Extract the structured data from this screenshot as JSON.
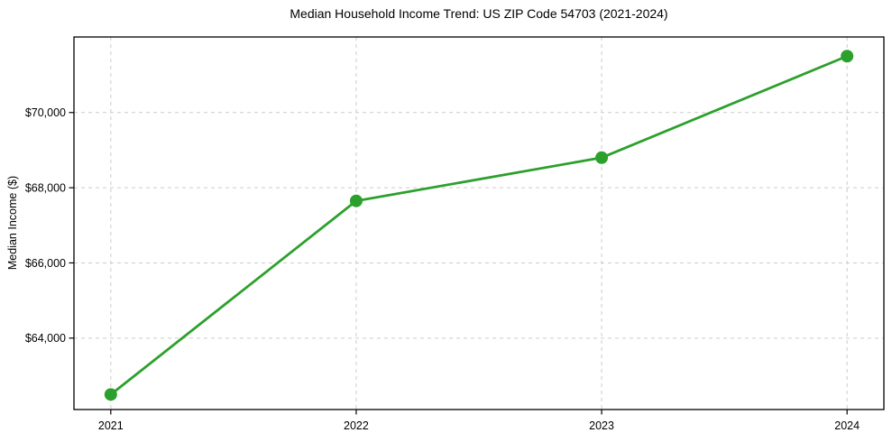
{
  "page": {
    "background": "#ffffff"
  },
  "chart_data": {
    "type": "line",
    "title": "Median Household Income Trend: US ZIP Code 54703 (2021-2024)",
    "xlabel": "",
    "ylabel": "Median Income ($)",
    "x": [
      2021,
      2022,
      2023,
      2024
    ],
    "values": [
      62500,
      67650,
      68800,
      71500
    ],
    "xtick_labels": [
      "2021",
      "2022",
      "2023",
      "2024"
    ],
    "ytick_values": [
      64000,
      66000,
      68000,
      70000
    ],
    "ytick_labels": [
      "$64,000",
      "$66,000",
      "$68,000",
      "$70,000"
    ],
    "xlim": [
      2020.85,
      2024.15
    ],
    "ylim": [
      62100,
      72010
    ],
    "grid": {
      "show": true,
      "style": "dashed",
      "color": "#cccccc"
    },
    "legend": {
      "show": false
    },
    "line_color": "#2ca02c",
    "marker": "circle",
    "frame_color": "#000000",
    "text_color": "#000000"
  }
}
